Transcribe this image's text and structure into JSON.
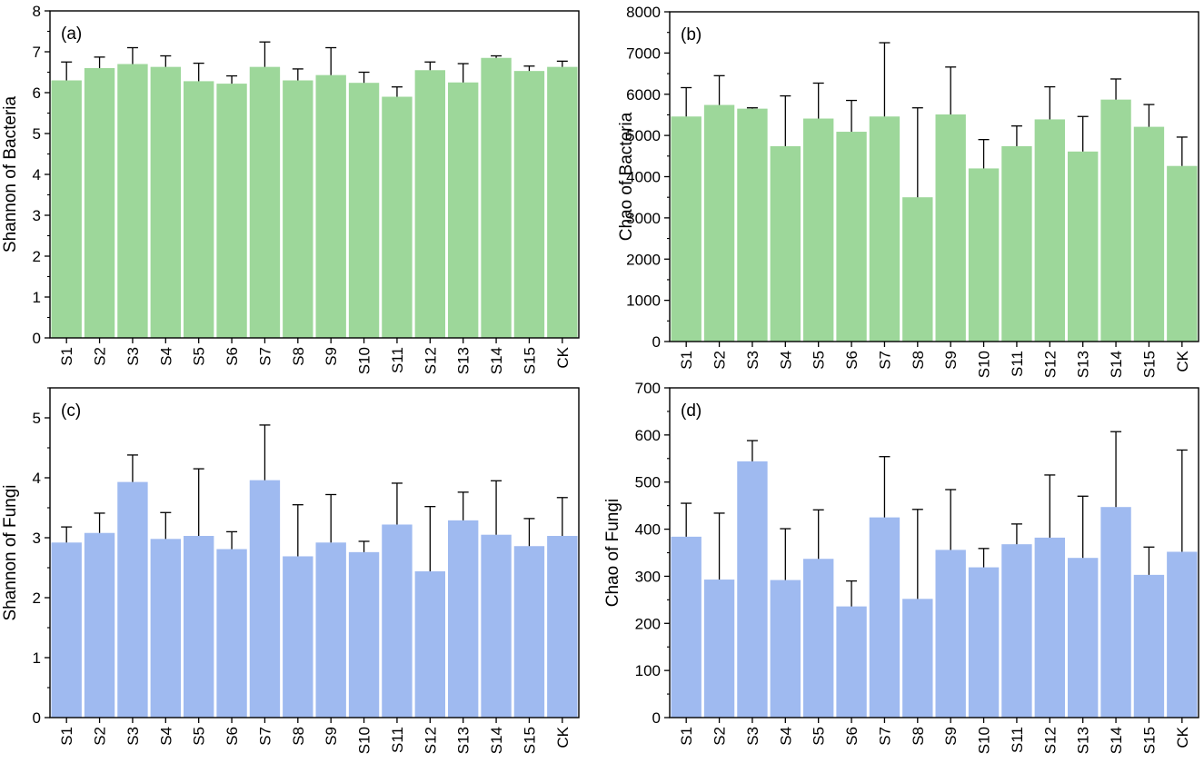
{
  "chart_data": [
    {
      "type": "bar",
      "panel": "(a)",
      "ylabel": "Shannon of Bacteria",
      "xlabel": "",
      "ylim": [
        0,
        8
      ],
      "yticks": [
        "0",
        "1",
        "2",
        "3",
        "4",
        "5",
        "6",
        "7",
        "8"
      ],
      "categories": [
        "S1",
        "S2",
        "S3",
        "S4",
        "S5",
        "S6",
        "S7",
        "S8",
        "S9",
        "S10",
        "S11",
        "S12",
        "S13",
        "S14",
        "S15",
        "CK"
      ],
      "values": [
        6.3,
        6.6,
        6.7,
        6.63,
        6.28,
        6.22,
        6.63,
        6.3,
        6.43,
        6.24,
        5.9,
        6.55,
        6.25,
        6.85,
        6.53,
        6.63
      ],
      "errors": [
        0.45,
        0.27,
        0.4,
        0.27,
        0.44,
        0.19,
        0.61,
        0.28,
        0.67,
        0.26,
        0.24,
        0.2,
        0.46,
        0.05,
        0.12,
        0.14
      ],
      "color": "#9dd79a"
    },
    {
      "type": "bar",
      "panel": "(b)",
      "ylabel": "Chao of Bacteria",
      "xlabel": "",
      "ylim": [
        0,
        8000
      ],
      "yticks": [
        "0",
        "1000",
        "2000",
        "3000",
        "4000",
        "5000",
        "6000",
        "7000",
        "8000"
      ],
      "categories": [
        "S1",
        "S2",
        "S3",
        "S4",
        "S5",
        "S6",
        "S7",
        "S8",
        "S9",
        "S10",
        "S11",
        "S12",
        "S13",
        "S14",
        "S15",
        "CK"
      ],
      "values": [
        5460,
        5740,
        5650,
        4740,
        5410,
        5090,
        5460,
        3500,
        5510,
        4200,
        4740,
        5390,
        4610,
        5870,
        5210,
        4260
      ],
      "errors": [
        700,
        710,
        20,
        1220,
        860,
        760,
        1790,
        2170,
        1150,
        700,
        490,
        790,
        850,
        500,
        540,
        700
      ],
      "color": "#9dd79a"
    },
    {
      "type": "bar",
      "panel": "(c)",
      "ylabel": "Shannon of Fungi",
      "xlabel": "",
      "ylim": [
        0,
        5.5
      ],
      "yticks": [
        "0",
        "1",
        "2",
        "3",
        "4",
        "5"
      ],
      "categories": [
        "S1",
        "S2",
        "S3",
        "S4",
        "S5",
        "S6",
        "S7",
        "S8",
        "S9",
        "S10",
        "S11",
        "S12",
        "S13",
        "S14",
        "S15",
        "CK"
      ],
      "values": [
        2.92,
        3.08,
        3.93,
        2.98,
        3.03,
        2.81,
        3.96,
        2.69,
        2.92,
        2.76,
        3.22,
        2.44,
        3.29,
        3.05,
        2.86,
        3.03
      ],
      "errors": [
        0.26,
        0.33,
        0.45,
        0.44,
        1.12,
        0.29,
        0.92,
        0.86,
        0.8,
        0.18,
        0.69,
        1.08,
        0.47,
        0.9,
        0.46,
        0.64
      ],
      "color": "#9fbaf0"
    },
    {
      "type": "bar",
      "panel": "(d)",
      "ylabel": "Chao of Fungi",
      "xlabel": "",
      "ylim": [
        0,
        700
      ],
      "yticks": [
        "0",
        "100",
        "200",
        "300",
        "400",
        "500",
        "600",
        "700"
      ],
      "categories": [
        "S1",
        "S2",
        "S3",
        "S4",
        "S5",
        "S6",
        "S7",
        "S8",
        "S9",
        "S10",
        "S11",
        "S12",
        "S13",
        "S14",
        "S15",
        "CK"
      ],
      "values": [
        384,
        293,
        544,
        292,
        337,
        236,
        425,
        252,
        356,
        319,
        368,
        382,
        339,
        447,
        303,
        352
      ],
      "errors": [
        71,
        141,
        44,
        109,
        104,
        54,
        129,
        190,
        128,
        40,
        43,
        133,
        131,
        160,
        59,
        216
      ],
      "color": "#9fbaf0"
    }
  ]
}
